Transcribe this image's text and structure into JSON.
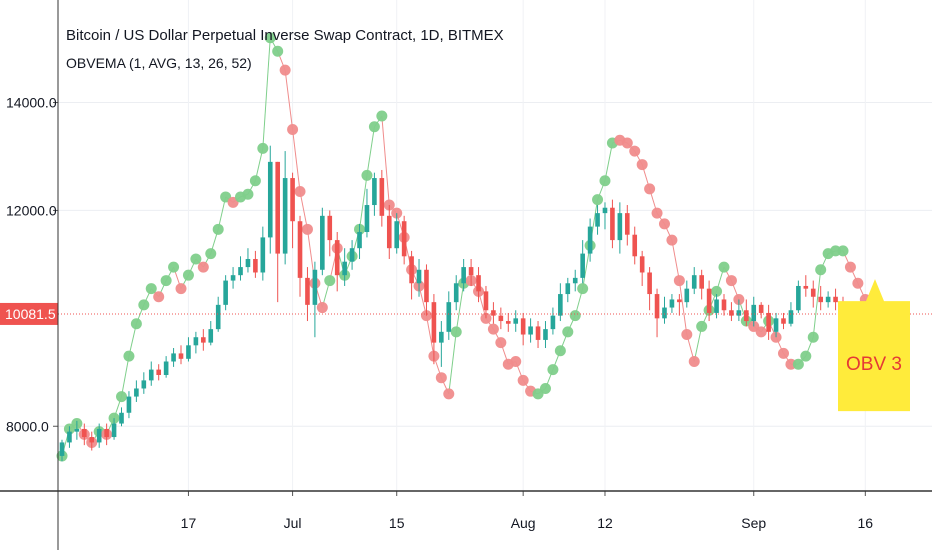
{
  "chart_data": {
    "type": "candlestick",
    "title": "Bitcoin / US Dollar Perpetual Inverse Swap Contract, 1D, BITMEX",
    "indicator_label": "OBVEMA (1, AVG, 13, 26, 52)",
    "y_ticks": [
      "14000.0",
      "12000.0",
      "8000.0"
    ],
    "y_tick_values": [
      14000,
      12000,
      8000
    ],
    "ylim": [
      6800,
      15900
    ],
    "x_ticks": [
      {
        "label": "17",
        "day": 17
      },
      {
        "label": "Jul",
        "day": 31
      },
      {
        "label": "15",
        "day": 45
      },
      {
        "label": "Aug",
        "day": 62
      },
      {
        "label": "12",
        "day": 73
      },
      {
        "label": "Sep",
        "day": 93
      },
      {
        "label": "16",
        "day": 108
      }
    ],
    "last_price": {
      "label": "10081.5",
      "value": 10081.5
    },
    "annotation": {
      "text": "OBV 3",
      "value_center": 9300
    },
    "colors": {
      "up": "#26a69a",
      "down": "#ef5350",
      "dot_green": "#7fcf8b",
      "dot_red": "#f08c8c",
      "last_price": "#ef5350",
      "annotation_bg": "#ffeb3b",
      "annotation_text": "#e53935"
    },
    "x_start_day": 0,
    "x_end_day": 117,
    "candles": [
      [
        7450,
        7700,
        7350,
        7750
      ],
      [
        7700,
        7900,
        7600,
        8000
      ],
      [
        7900,
        7950,
        7750,
        8100
      ],
      [
        7950,
        7800,
        7650,
        8050
      ],
      [
        7800,
        7700,
        7550,
        7900
      ],
      [
        7700,
        7950,
        7600,
        8050
      ],
      [
        7950,
        7800,
        7650,
        8050
      ],
      [
        7800,
        8050,
        7750,
        8150
      ],
      [
        8050,
        8250,
        8000,
        8350
      ],
      [
        8250,
        8550,
        8150,
        8650
      ],
      [
        8550,
        8700,
        8450,
        8850
      ],
      [
        8700,
        8850,
        8600,
        9000
      ],
      [
        8850,
        9050,
        8750,
        9200
      ],
      [
        9050,
        8950,
        8850,
        9150
      ],
      [
        8950,
        9200,
        8900,
        9300
      ],
      [
        9200,
        9350,
        9100,
        9450
      ],
      [
        9350,
        9250,
        9150,
        9500
      ],
      [
        9250,
        9500,
        9200,
        9650
      ],
      [
        9500,
        9650,
        9350,
        9750
      ],
      [
        9650,
        9550,
        9400,
        9800
      ],
      [
        9550,
        9800,
        9500,
        9950
      ],
      [
        9800,
        10250,
        9750,
        10400
      ],
      [
        10250,
        10700,
        10150,
        10800
      ],
      [
        10700,
        10800,
        10550,
        10950
      ],
      [
        10800,
        10950,
        10700,
        11150
      ],
      [
        10950,
        11100,
        10850,
        11300
      ],
      [
        11100,
        10850,
        10750,
        11250
      ],
      [
        10850,
        11500,
        10700,
        11700
      ],
      [
        11500,
        12900,
        11200,
        13200
      ],
      [
        12900,
        11200,
        10300,
        12900
      ],
      [
        11200,
        12600,
        11000,
        13100
      ],
      [
        12600,
        11800,
        11300,
        12700
      ],
      [
        11800,
        10750,
        10400,
        11900
      ],
      [
        10750,
        10250,
        9950,
        10950
      ],
      [
        10250,
        10900,
        9650,
        11050
      ],
      [
        10900,
        11900,
        10800,
        12050
      ],
      [
        11900,
        11450,
        11150,
        12000
      ],
      [
        11450,
        10800,
        10500,
        11600
      ],
      [
        10800,
        11050,
        10600,
        11300
      ],
      [
        11050,
        11300,
        10900,
        11450
      ],
      [
        11300,
        11600,
        11100,
        11750
      ],
      [
        11600,
        12100,
        11500,
        12400
      ],
      [
        12100,
        12600,
        11900,
        12700
      ],
      [
        12600,
        11900,
        11700,
        12750
      ],
      [
        11900,
        11300,
        11100,
        12100
      ],
      [
        11300,
        11800,
        11200,
        11950
      ],
      [
        11800,
        11150,
        11000,
        11900
      ],
      [
        11150,
        10650,
        10350,
        11250
      ],
      [
        10650,
        10900,
        10400,
        11100
      ],
      [
        10900,
        10300,
        10050,
        11000
      ],
      [
        10300,
        9550,
        9150,
        10450
      ],
      [
        9550,
        9750,
        9100,
        9950
      ],
      [
        9750,
        10300,
        9600,
        10500
      ],
      [
        10300,
        10650,
        10150,
        10800
      ],
      [
        10650,
        10950,
        10500,
        11100
      ],
      [
        10950,
        10800,
        10600,
        11100
      ],
      [
        10800,
        10500,
        10300,
        10950
      ],
      [
        10500,
        10150,
        10000,
        10600
      ],
      [
        10150,
        10050,
        9900,
        10300
      ],
      [
        10050,
        9950,
        9800,
        10200
      ],
      [
        9950,
        9900,
        9750,
        10100
      ],
      [
        9900,
        10000,
        9750,
        10150
      ],
      [
        10000,
        9700,
        9500,
        10100
      ],
      [
        9700,
        9850,
        9550,
        10000
      ],
      [
        9850,
        9600,
        9450,
        9950
      ],
      [
        9600,
        9800,
        9450,
        9950
      ],
      [
        9800,
        10050,
        9700,
        10200
      ],
      [
        10050,
        10450,
        9950,
        10650
      ],
      [
        10450,
        10650,
        10300,
        10750
      ],
      [
        10650,
        10750,
        10500,
        10900
      ],
      [
        10750,
        11200,
        10650,
        11450
      ],
      [
        11200,
        11700,
        11050,
        11850
      ],
      [
        11700,
        11950,
        11550,
        12100
      ],
      [
        11950,
        12050,
        11650,
        12150
      ],
      [
        12050,
        11450,
        11300,
        12200
      ],
      [
        11450,
        11950,
        11200,
        12150
      ],
      [
        11950,
        11550,
        11350,
        12100
      ],
      [
        11550,
        11150,
        11000,
        11700
      ],
      [
        11150,
        10850,
        10600,
        11250
      ],
      [
        10850,
        10450,
        10150,
        10950
      ],
      [
        10450,
        10000,
        9650,
        10550
      ],
      [
        10000,
        10200,
        9900,
        10400
      ],
      [
        10200,
        10350,
        10100,
        10450
      ],
      [
        10350,
        10300,
        10050,
        10450
      ],
      [
        10300,
        10550,
        10200,
        10700
      ],
      [
        10550,
        10800,
        10450,
        10950
      ],
      [
        10800,
        10550,
        10350,
        10900
      ],
      [
        10550,
        10100,
        9950,
        10700
      ],
      [
        10100,
        10350,
        10000,
        10450
      ],
      [
        10350,
        10150,
        10050,
        10450
      ],
      [
        10150,
        10050,
        9950,
        10300
      ],
      [
        10050,
        10150,
        9950,
        10350
      ],
      [
        10150,
        9950,
        9850,
        10350
      ],
      [
        9950,
        10250,
        9850,
        10400
      ],
      [
        10250,
        10100,
        10000,
        10300
      ],
      [
        10100,
        9750,
        9600,
        10250
      ],
      [
        9750,
        10000,
        9650,
        10100
      ],
      [
        10000,
        9900,
        9800,
        10100
      ],
      [
        9900,
        10150,
        9850,
        10300
      ],
      [
        10150,
        10600,
        10100,
        10700
      ],
      [
        10600,
        10550,
        10400,
        10800
      ],
      [
        10550,
        10400,
        10200,
        10700
      ],
      [
        10400,
        10300,
        10150,
        10600
      ],
      [
        10300,
        10400,
        10200,
        10500
      ],
      [
        10400,
        10300,
        10150,
        10550
      ],
      [
        10300,
        10100,
        9950,
        10400
      ]
    ],
    "obv_dots": [
      {
        "v": 7450,
        "c": "green"
      },
      {
        "v": 7950,
        "c": "green"
      },
      {
        "v": 8050,
        "c": "green"
      },
      {
        "v": 7850,
        "c": "red"
      },
      {
        "v": 7700,
        "c": "red"
      },
      {
        "v": 7900,
        "c": "green"
      },
      {
        "v": 7850,
        "c": "red"
      },
      {
        "v": 8150,
        "c": "green"
      },
      {
        "v": 8550,
        "c": "green"
      },
      {
        "v": 9300,
        "c": "green"
      },
      {
        "v": 9900,
        "c": "green"
      },
      {
        "v": 10250,
        "c": "green"
      },
      {
        "v": 10550,
        "c": "green"
      },
      {
        "v": 10400,
        "c": "red"
      },
      {
        "v": 10700,
        "c": "green"
      },
      {
        "v": 10950,
        "c": "green"
      },
      {
        "v": 10550,
        "c": "red"
      },
      {
        "v": 10800,
        "c": "green"
      },
      {
        "v": 11100,
        "c": "green"
      },
      {
        "v": 10950,
        "c": "red"
      },
      {
        "v": 11200,
        "c": "green"
      },
      {
        "v": 11650,
        "c": "green"
      },
      {
        "v": 12250,
        "c": "green"
      },
      {
        "v": 12150,
        "c": "red"
      },
      {
        "v": 12250,
        "c": "green"
      },
      {
        "v": 12300,
        "c": "green"
      },
      {
        "v": 12550,
        "c": "green"
      },
      {
        "v": 13150,
        "c": "green"
      },
      {
        "v": 15200,
        "c": "green"
      },
      {
        "v": 14950,
        "c": "green"
      },
      {
        "v": 14600,
        "c": "red"
      },
      {
        "v": 13500,
        "c": "red"
      },
      {
        "v": 12350,
        "c": "red"
      },
      {
        "v": 11650,
        "c": "red"
      },
      {
        "v": 10650,
        "c": "red"
      },
      {
        "v": 10200,
        "c": "red"
      },
      {
        "v": 10700,
        "c": "green"
      },
      {
        "v": 11300,
        "c": "red"
      },
      {
        "v": 10800,
        "c": "green"
      },
      {
        "v": 11150,
        "c": "green"
      },
      {
        "v": 11650,
        "c": "green"
      },
      {
        "v": 12650,
        "c": "green"
      },
      {
        "v": 13550,
        "c": "green"
      },
      {
        "v": 13750,
        "c": "green"
      },
      {
        "v": 12100,
        "c": "red"
      },
      {
        "v": 11950,
        "c": "red"
      },
      {
        "v": 11500,
        "c": "red"
      },
      {
        "v": 10900,
        "c": "red"
      },
      {
        "v": 10600,
        "c": "red"
      },
      {
        "v": 10050,
        "c": "red"
      },
      {
        "v": 9300,
        "c": "red"
      },
      {
        "v": 8900,
        "c": "red"
      },
      {
        "v": 8600,
        "c": "red"
      },
      {
        "v": 9750,
        "c": "green"
      },
      {
        "v": 10650,
        "c": "green"
      },
      {
        "v": 10700,
        "c": "red"
      },
      {
        "v": 10500,
        "c": "red"
      },
      {
        "v": 10000,
        "c": "red"
      },
      {
        "v": 9800,
        "c": "red"
      },
      {
        "v": 9550,
        "c": "red"
      },
      {
        "v": 9150,
        "c": "red"
      },
      {
        "v": 9200,
        "c": "red"
      },
      {
        "v": 8850,
        "c": "red"
      },
      {
        "v": 8650,
        "c": "red"
      },
      {
        "v": 8600,
        "c": "green"
      },
      {
        "v": 8700,
        "c": "green"
      },
      {
        "v": 9050,
        "c": "green"
      },
      {
        "v": 9400,
        "c": "green"
      },
      {
        "v": 9750,
        "c": "green"
      },
      {
        "v": 10050,
        "c": "green"
      },
      {
        "v": 10550,
        "c": "green"
      },
      {
        "v": 11350,
        "c": "green"
      },
      {
        "v": 12200,
        "c": "green"
      },
      {
        "v": 12550,
        "c": "green"
      },
      {
        "v": 13250,
        "c": "green"
      },
      {
        "v": 13300,
        "c": "red"
      },
      {
        "v": 13250,
        "c": "red"
      },
      {
        "v": 13100,
        "c": "red"
      },
      {
        "v": 12850,
        "c": "red"
      },
      {
        "v": 12400,
        "c": "red"
      },
      {
        "v": 11950,
        "c": "red"
      },
      {
        "v": 11750,
        "c": "red"
      },
      {
        "v": 11450,
        "c": "red"
      },
      {
        "v": 10700,
        "c": "red"
      },
      {
        "v": 9700,
        "c": "red"
      },
      {
        "v": 9200,
        "c": "red"
      },
      {
        "v": 9850,
        "c": "green"
      },
      {
        "v": 10150,
        "c": "green"
      },
      {
        "v": 10500,
        "c": "green"
      },
      {
        "v": 10950,
        "c": "green"
      },
      {
        "v": 10700,
        "c": "red"
      },
      {
        "v": 10350,
        "c": "red"
      },
      {
        "v": 9950,
        "c": "green"
      },
      {
        "v": 9850,
        "c": "red"
      },
      {
        "v": 9750,
        "c": "red"
      },
      {
        "v": 9950,
        "c": "green"
      },
      {
        "v": 9650,
        "c": "red"
      },
      {
        "v": 9350,
        "c": "red"
      },
      {
        "v": 9150,
        "c": "red"
      },
      {
        "v": 9150,
        "c": "green"
      },
      {
        "v": 9300,
        "c": "green"
      },
      {
        "v": 9650,
        "c": "green"
      },
      {
        "v": 10900,
        "c": "green"
      },
      {
        "v": 11200,
        "c": "green"
      },
      {
        "v": 11250,
        "c": "green"
      },
      {
        "v": 11250,
        "c": "green"
      },
      {
        "v": 10950,
        "c": "red"
      },
      {
        "v": 10650,
        "c": "red"
      },
      {
        "v": 10350,
        "c": "red"
      },
      {
        "v": 9650,
        "c": "red"
      }
    ]
  }
}
